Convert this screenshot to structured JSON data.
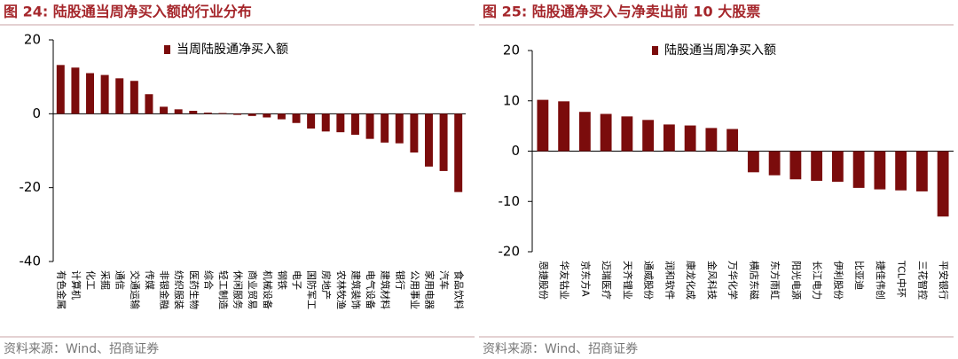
{
  "chart_data": [
    {
      "type": "bar",
      "title": "图 24:  陆股通当周净买入额的行业分布",
      "legend_name": "当周陆股通净买入额",
      "color": "#7b0c0c",
      "categories": [
        "有色金属",
        "计算机",
        "化工",
        "采掘",
        "通信",
        "交通运输",
        "传媒",
        "非银金融",
        "纺织服装",
        "医药生物",
        "综合",
        "轻工制造",
        "休闲服务",
        "商业贸易",
        "机械设备",
        "钢铁",
        "电子",
        "国防军工",
        "房地产",
        "农林牧渔",
        "建筑装饰",
        "电气设备",
        "建筑材料",
        "银行",
        "公用事业",
        "家用电器",
        "汽车",
        "食品饮料"
      ],
      "values": [
        13.2,
        12.5,
        11,
        10.5,
        9.6,
        8.9,
        5.3,
        1.9,
        1.2,
        0.8,
        0.3,
        0.2,
        -0.3,
        -0.6,
        -1,
        -1.5,
        -2.5,
        -4,
        -4.8,
        -5,
        -5.7,
        -6.8,
        -7.8,
        -8,
        -10.5,
        -14.3,
        -15.5,
        -21.2
      ],
      "ylim": [
        -40,
        20
      ],
      "yticks": [
        -40,
        -20,
        0,
        20
      ],
      "source": "资料来源：Wind、招商证券"
    },
    {
      "type": "bar",
      "title": "图 25:  陆股通净买入与净卖出前 10 大股票",
      "legend_name": "陆股通当周净买入额",
      "color": "#7b0c0c",
      "categories": [
        "恩捷股份",
        "华友钴业",
        "京东方A",
        "迈瑞医疗",
        "天齐锂业",
        "通威股份",
        "润和软件",
        "康龙化成",
        "金风科技",
        "万华化学",
        "横店东磁",
        "东方雨虹",
        "阳光电源",
        "长江电力",
        "伊利股份",
        "比亚迪",
        "捷佳伟创",
        "TCL中环",
        "三花智控",
        "平安银行"
      ],
      "values": [
        10.2,
        9.9,
        7.8,
        7.4,
        6.9,
        6.2,
        5.3,
        5.1,
        4.6,
        4.4,
        -4.2,
        -4.8,
        -5.6,
        -5.9,
        -6.1,
        -7.3,
        -7.6,
        -7.8,
        -8,
        -13
      ],
      "ylim": [
        -20,
        20
      ],
      "yticks": [
        -20,
        -10,
        0,
        10,
        20
      ],
      "source": "资料来源：Wind、招商证券"
    }
  ]
}
